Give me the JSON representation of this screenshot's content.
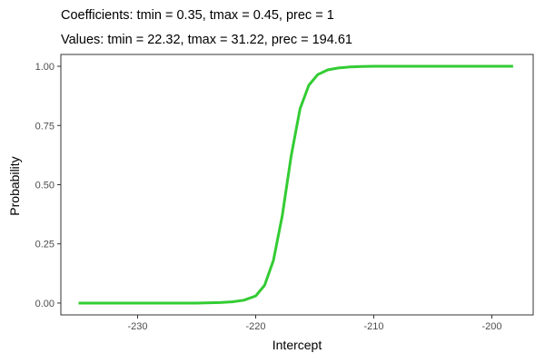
{
  "chart_data": {
    "type": "line",
    "title": "Coefficients: tmin = 0.35, tmax = 0.45, prec = 1",
    "subtitle": "Values: tmin = 22.32, tmax = 31.22, prec = 194.61",
    "xlabel": "Intercept",
    "ylabel": "Probability",
    "xlim": [
      -236.5,
      -196.5
    ],
    "ylim": [
      -0.05,
      1.05
    ],
    "x_ticks": [
      -230,
      -220,
      -210,
      -200
    ],
    "x_tick_labels": [
      "-230",
      "-220",
      "-210",
      "-200"
    ],
    "y_ticks": [
      0,
      0.25,
      0.5,
      0.75,
      1
    ],
    "y_tick_labels": [
      "0.00",
      "0.25",
      "0.50",
      "0.75",
      "1.00"
    ],
    "grid": false,
    "series": [
      {
        "color": "#33cc33",
        "x": [
          -235,
          -230,
          -225,
          -223,
          -222,
          -221,
          -220,
          -219.25,
          -218.5,
          -217.75,
          -217,
          -216.25,
          -215.5,
          -214.75,
          -213.9,
          -213,
          -212,
          -211,
          -210,
          -208,
          -205,
          -200,
          -198.2
        ],
        "y": [
          0.0,
          0.0,
          0.0,
          0.002,
          0.005,
          0.012,
          0.03,
          0.075,
          0.18,
          0.37,
          0.62,
          0.82,
          0.92,
          0.965,
          0.985,
          0.993,
          0.997,
          0.999,
          1.0,
          1.0,
          1.0,
          1.0,
          1.0
        ]
      }
    ]
  }
}
